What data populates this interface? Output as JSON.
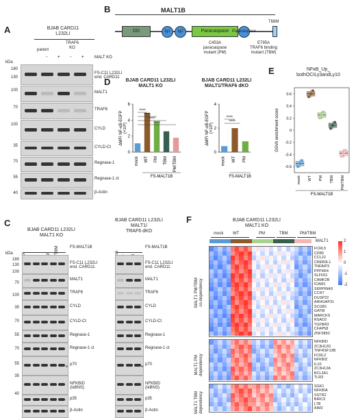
{
  "panels": {
    "A": "A",
    "B": "B",
    "C": "C",
    "D": "D",
    "E": "E",
    "F": "F"
  },
  "A": {
    "header": "BJAB CARD11\nL232LI",
    "parent": "parent",
    "traf6ko": "TRAF6\nKO",
    "maltko": "MALT KO",
    "kda": "kDa",
    "signs": [
      "-",
      "+",
      "-",
      "+"
    ],
    "rows": [
      {
        "label": "FS-C11 L232LI\nend. CARD11",
        "mw": [
          "180",
          "130"
        ]
      },
      {
        "label": "MALT1",
        "mw": [
          "100"
        ]
      },
      {
        "label": "TRAF6",
        "mw": [
          "70"
        ]
      },
      {
        "label": "CYLD",
        "mw": [
          "100"
        ]
      },
      {
        "label": "CYLD-Ct",
        "mw": [
          "35"
        ]
      },
      {
        "label": "Regnase-1",
        "mw": [
          "70"
        ]
      },
      {
        "label": "Regnase-1 ct",
        "mw": [
          "55"
        ]
      },
      {
        "label": "β-Actin",
        "mw": [
          "40"
        ]
      }
    ]
  },
  "B": {
    "title": "MALT1B",
    "domains": [
      "DD",
      "Ig1",
      "Ig2",
      "Paracaspase",
      "Ig3"
    ],
    "t68m": "T68M",
    "c453a": "C453A\nparacaspase\nmutant (PM)",
    "e795a": "E795A\nTRAF6 binding\nmutant (TBM)"
  },
  "D": {
    "title1": "BJAB CARD11 L232LI\nMALT1 KO",
    "title2": "BJAB CARD11 L232LI\nMALT1/TRAF6 dKO",
    "ylabel": "ΔMFI NF-κB-EGFP\n(×10³)",
    "xgroup": "FS-MALT1B",
    "stars": "****",
    "chart1": {
      "categories": [
        "mock",
        "WT",
        "PM",
        "TBM",
        "PM/TBM"
      ],
      "values": [
        1.1,
        4.9,
        3.8,
        2.6,
        1.8
      ],
      "colors": [
        "#5b9bd5",
        "#8c5a2b",
        "#70ad47",
        "#375e4f",
        "#e69b9b"
      ],
      "ylim": [
        0,
        6
      ],
      "yticks": [
        "0",
        "2",
        "4",
        "6"
      ]
    },
    "chart2": {
      "categories": [
        "mock",
        "WT",
        "PM"
      ],
      "values": [
        0.5,
        2.0,
        0.9
      ],
      "colors": [
        "#5b9bd5",
        "#8c5a2b",
        "#70ad47"
      ],
      "ylim": [
        0,
        4
      ],
      "yticks": [
        "0",
        "2",
        "4"
      ]
    }
  },
  "E": {
    "title": "NFκB_Up_\nbothOCILy3andLy10",
    "ylabel": "GSVA enrichment score",
    "yticks": [
      "0.6",
      "0.4",
      "0.2",
      "0",
      "-0.2",
      "-0.4",
      "-0.6"
    ],
    "categories": [
      "mock",
      "WT",
      "PM",
      "TBM",
      "PM/TBM"
    ],
    "xgroup": "FS-MALT1B",
    "chart_data": {
      "type": "box",
      "categories": [
        "mock",
        "WT",
        "PM",
        "TBM",
        "PM/TBM"
      ],
      "values": [
        -0.55,
        0.6,
        0.25,
        0.08,
        -0.38
      ],
      "colors": [
        "#5b9bd5",
        "#8c5a2b",
        "#a9d18e",
        "#375e4f",
        "#f4b6b6"
      ]
    }
  },
  "C": {
    "title1": "BJAB CARD11 L232LI\nMALT1 KO",
    "title2": "BJAB CARD11 L232LI\nMALT1/\nTRAF6 dKO",
    "lanes1": [
      "mock",
      "WT",
      "PM",
      "TBM",
      "PM/TBM"
    ],
    "lanes2": [
      "mock",
      "WT",
      "PM"
    ],
    "fs": "FS-MALT1B",
    "kda": "kDa",
    "rows": [
      "FS-C11 L232LI\nend. CARD11",
      "MALT1",
      "TRAF6",
      "CYLD",
      "CYLD-Ct",
      "Regnase-1",
      "Regnase-1 ct",
      "p70",
      "NFKBID\n(IκBNS)",
      "p35",
      "β-Actin"
    ],
    "mw": [
      "180",
      "130",
      "100",
      "70",
      "100",
      "35",
      "70",
      "55",
      "70",
      "55",
      "35",
      "40"
    ],
    "star": "*"
  },
  "F": {
    "header": "BJAB CARD11 L232LI\nMALT1 KO",
    "groups": [
      "mock",
      "WT",
      "PM",
      "TBM",
      "PM/TBM"
    ],
    "malt1": "MALT1",
    "group_colors": [
      "#5b9bd5",
      "#8c5a2b",
      "#a9d18e",
      "#375e4f",
      "#f4b6b6"
    ],
    "legend": [
      "2",
      "1",
      "0",
      "-1",
      "-2"
    ],
    "blocks": [
      {
        "label": "MALT1 PM/TBM\nco-dependency",
        "genes": [
          "FCRL5",
          "CD80",
          "CCL22",
          "CREB3L1",
          "TNFAIP3",
          "PPP4R4",
          "SLFN11",
          "CAMK2B",
          "ICAM1",
          "SERPINA9",
          "CCR7",
          "DUSP22",
          "ARHGAP31",
          "SCGB1",
          "GATM",
          "MARCKS",
          "RSAD2",
          "TGFBR3",
          "CFAP58",
          "ZNF385C"
        ]
      },
      {
        "label": "MALT1 PM\ndependency",
        "genes": [
          "NFKBID",
          "ZC3H12D",
          "TNFRSF13B",
          "FCRL2",
          "NFKBIZ",
          "IL10",
          "ZC3H12A",
          "BCL2A1",
          "TLR3"
        ]
      },
      {
        "label": "MALT1 TBM\ndependency",
        "genes": [
          "SGK1",
          "NFKBIA",
          "SSTR2",
          "BIRC3",
          "LTB",
          "AIM2"
        ]
      }
    ]
  }
}
